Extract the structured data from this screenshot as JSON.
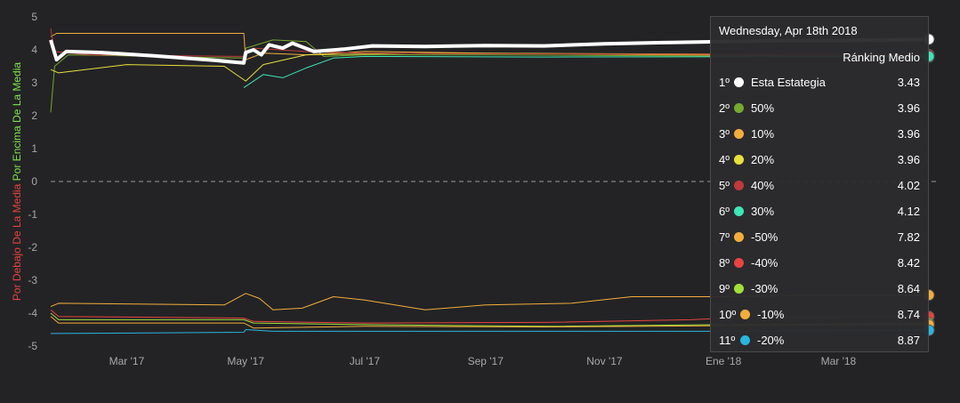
{
  "chart_data": {
    "type": "line",
    "title": "",
    "ylabel_parts": [
      {
        "text": "Por Debajo De La Media",
        "color": "#e8433f"
      },
      {
        "text": " Por Encima De La Media",
        "color": "#7ee34a"
      }
    ],
    "ylim": [
      -5,
      5
    ],
    "yticks": [
      5,
      4,
      3,
      2,
      1,
      0,
      -1,
      -2,
      -3,
      -4,
      -5
    ],
    "xlim": [
      "2017-01-21",
      "2018-04-20"
    ],
    "xticks": [
      {
        "label": "Mar '17",
        "date": "2017-03-01"
      },
      {
        "label": "May '17",
        "date": "2017-05-01"
      },
      {
        "label": "Jul '17",
        "date": "2017-07-01"
      },
      {
        "label": "Sep '17",
        "date": "2017-09-01"
      },
      {
        "label": "Nov '17",
        "date": "2017-11-01"
      },
      {
        "label": "Ene '18",
        "date": "2018-01-01"
      },
      {
        "label": "Mar '18",
        "date": "2018-03-01"
      }
    ],
    "zero_line": true,
    "series": [
      {
        "name": "Esta Estategia",
        "color": "#ffffff",
        "width": 4,
        "points": [
          [
            "2017-01-21",
            4.3
          ],
          [
            "2017-01-24",
            3.7
          ],
          [
            "2017-01-29",
            3.95
          ],
          [
            "2017-02-15",
            3.92
          ],
          [
            "2017-03-15",
            3.82
          ],
          [
            "2017-04-15",
            3.68
          ],
          [
            "2017-04-30",
            3.6
          ],
          [
            "2017-05-01",
            3.92
          ],
          [
            "2017-05-05",
            4.0
          ],
          [
            "2017-05-09",
            3.85
          ],
          [
            "2017-05-13",
            4.15
          ],
          [
            "2017-05-20",
            4.05
          ],
          [
            "2017-05-25",
            4.2
          ],
          [
            "2017-06-05",
            3.95
          ],
          [
            "2017-06-20",
            4.02
          ],
          [
            "2017-07-05",
            4.12
          ],
          [
            "2017-08-01",
            4.1
          ],
          [
            "2017-09-01",
            4.13
          ],
          [
            "2017-10-01",
            4.12
          ],
          [
            "2017-11-01",
            4.18
          ],
          [
            "2017-12-01",
            4.22
          ],
          [
            "2018-01-01",
            4.25
          ],
          [
            "2018-02-01",
            4.28
          ],
          [
            "2018-03-01",
            4.28
          ],
          [
            "2018-04-18",
            4.32
          ]
        ]
      },
      {
        "name": "50%",
        "color": "#77a82f",
        "width": 1,
        "points": [
          [
            "2017-01-21",
            2.1
          ],
          [
            "2017-01-23",
            3.5
          ],
          [
            "2017-01-30",
            3.85
          ],
          [
            "2017-04-30",
            3.75
          ],
          [
            "2017-05-01",
            4.05
          ],
          [
            "2017-05-15",
            4.3
          ],
          [
            "2017-06-01",
            4.25
          ],
          [
            "2017-06-10",
            3.8
          ],
          [
            "2017-07-01",
            3.85
          ],
          [
            "2017-09-01",
            3.85
          ],
          [
            "2017-12-01",
            3.82
          ],
          [
            "2018-04-18",
            3.78
          ]
        ]
      },
      {
        "name": "10%",
        "color": "#f3ad3d",
        "width": 1,
        "points": [
          [
            "2017-01-21",
            4.4
          ],
          [
            "2017-01-24",
            4.5
          ],
          [
            "2017-04-30",
            4.5
          ],
          [
            "2017-05-01",
            3.7
          ],
          [
            "2017-05-10",
            3.9
          ],
          [
            "2017-06-01",
            3.85
          ],
          [
            "2017-07-01",
            3.95
          ],
          [
            "2017-09-01",
            3.9
          ],
          [
            "2017-12-01",
            3.85
          ],
          [
            "2018-04-18",
            3.82
          ]
        ]
      },
      {
        "name": "20%",
        "color": "#e9e03d",
        "width": 1,
        "points": [
          [
            "2017-01-21",
            3.4
          ],
          [
            "2017-01-25",
            3.3
          ],
          [
            "2017-03-01",
            3.55
          ],
          [
            "2017-04-20",
            3.5
          ],
          [
            "2017-05-01",
            3.05
          ],
          [
            "2017-05-10",
            3.55
          ],
          [
            "2017-06-01",
            3.85
          ],
          [
            "2017-08-01",
            3.9
          ],
          [
            "2017-11-01",
            3.88
          ],
          [
            "2018-04-18",
            3.85
          ]
        ]
      },
      {
        "name": "40%",
        "color": "#c0393b",
        "width": 1,
        "points": [
          [
            "2017-01-21",
            4.65
          ],
          [
            "2017-01-23",
            3.95
          ],
          [
            "2017-02-10",
            3.85
          ],
          [
            "2017-04-30",
            3.8
          ],
          [
            "2017-05-05",
            4.05
          ],
          [
            "2017-06-01",
            3.95
          ],
          [
            "2017-07-01",
            3.9
          ],
          [
            "2017-09-01",
            3.88
          ],
          [
            "2018-04-18",
            3.85
          ]
        ]
      },
      {
        "name": "30%",
        "color": "#3fe6b8",
        "width": 1,
        "points": [
          [
            "2017-04-30",
            2.85
          ],
          [
            "2017-05-10",
            3.25
          ],
          [
            "2017-05-20",
            3.15
          ],
          [
            "2017-06-01",
            3.45
          ],
          [
            "2017-06-15",
            3.75
          ],
          [
            "2017-07-01",
            3.8
          ],
          [
            "2017-10-01",
            3.78
          ],
          [
            "2018-04-18",
            3.8
          ]
        ]
      },
      {
        "name": "-50%",
        "color": "#f3ad3d",
        "width": 1,
        "points": [
          [
            "2017-01-21",
            -3.8
          ],
          [
            "2017-01-25",
            -3.7
          ],
          [
            "2017-04-20",
            -3.75
          ],
          [
            "2017-05-01",
            -3.4
          ],
          [
            "2017-05-08",
            -3.55
          ],
          [
            "2017-05-15",
            -3.9
          ],
          [
            "2017-05-30",
            -3.85
          ],
          [
            "2017-06-15",
            -3.5
          ],
          [
            "2017-07-01",
            -3.6
          ],
          [
            "2017-08-01",
            -3.9
          ],
          [
            "2017-09-01",
            -3.75
          ],
          [
            "2017-10-15",
            -3.7
          ],
          [
            "2017-11-15",
            -3.5
          ],
          [
            "2018-01-01",
            -3.5
          ],
          [
            "2018-02-15",
            -3.45
          ],
          [
            "2018-04-18",
            -3.45
          ]
        ]
      },
      {
        "name": "-40%",
        "color": "#e8433f",
        "width": 1,
        "points": [
          [
            "2017-01-21",
            -3.9
          ],
          [
            "2017-01-25",
            -4.1
          ],
          [
            "2017-04-30",
            -4.15
          ],
          [
            "2017-05-05",
            -4.25
          ],
          [
            "2017-07-01",
            -4.3
          ],
          [
            "2017-10-01",
            -4.28
          ],
          [
            "2017-12-15",
            -4.2
          ],
          [
            "2018-01-15",
            -4.12
          ],
          [
            "2018-04-18",
            -4.1
          ]
        ]
      },
      {
        "name": "-30%",
        "color": "#a0e03a",
        "width": 1,
        "points": [
          [
            "2017-01-21",
            -4.0
          ],
          [
            "2017-01-25",
            -4.2
          ],
          [
            "2017-04-30",
            -4.2
          ],
          [
            "2017-05-05",
            -4.3
          ],
          [
            "2017-07-01",
            -4.35
          ],
          [
            "2017-10-01",
            -4.4
          ],
          [
            "2018-01-01",
            -4.35
          ],
          [
            "2018-04-18",
            -4.3
          ]
        ]
      },
      {
        "name": "-10%",
        "color": "#f3ad3d",
        "width": 1,
        "points": [
          [
            "2017-01-21",
            -4.1
          ],
          [
            "2017-01-25",
            -4.3
          ],
          [
            "2017-04-30",
            -4.3
          ],
          [
            "2017-05-05",
            -4.45
          ],
          [
            "2017-07-01",
            -4.4
          ],
          [
            "2017-10-01",
            -4.42
          ],
          [
            "2018-01-01",
            -4.38
          ],
          [
            "2018-04-18",
            -4.35
          ]
        ]
      },
      {
        "name": "-20%",
        "color": "#29b6e0",
        "width": 1,
        "points": [
          [
            "2017-01-21",
            -4.62
          ],
          [
            "2017-04-30",
            -4.58
          ],
          [
            "2017-05-01",
            -4.5
          ],
          [
            "2017-05-15",
            -4.55
          ],
          [
            "2017-07-01",
            -4.55
          ],
          [
            "2017-10-01",
            -4.55
          ],
          [
            "2018-01-01",
            -4.55
          ],
          [
            "2018-04-18",
            -4.52
          ]
        ]
      }
    ]
  },
  "tooltip": {
    "date": "Wednesday, Apr 18th 2018",
    "column_header": "Ránking Medio",
    "rows": [
      {
        "rank": "1º",
        "color": "#ffffff",
        "name": "Esta Estategia",
        "value": "3.43"
      },
      {
        "rank": "2º",
        "color": "#77a82f",
        "name": "50%",
        "value": "3.96"
      },
      {
        "rank": "3º",
        "color": "#f3ad3d",
        "name": "10%",
        "value": "3.96"
      },
      {
        "rank": "4º",
        "color": "#e9e03d",
        "name": "20%",
        "value": "3.96"
      },
      {
        "rank": "5º",
        "color": "#c0393b",
        "name": "40%",
        "value": "4.02"
      },
      {
        "rank": "6º",
        "color": "#3fe6b8",
        "name": "30%",
        "value": "4.12"
      },
      {
        "rank": "7º",
        "color": "#f3ad3d",
        "name": "-50%",
        "value": "7.82"
      },
      {
        "rank": "8º",
        "color": "#e8433f",
        "name": "-40%",
        "value": "8.42"
      },
      {
        "rank": "9º",
        "color": "#a0e03a",
        "name": "-30%",
        "value": "8.64"
      },
      {
        "rank": "10º",
        "color": "#f3ad3d",
        "name": "-10%",
        "value": "8.74"
      },
      {
        "rank": "11º",
        "color": "#29b6e0",
        "name": "-20%",
        "value": "8.87"
      }
    ]
  }
}
